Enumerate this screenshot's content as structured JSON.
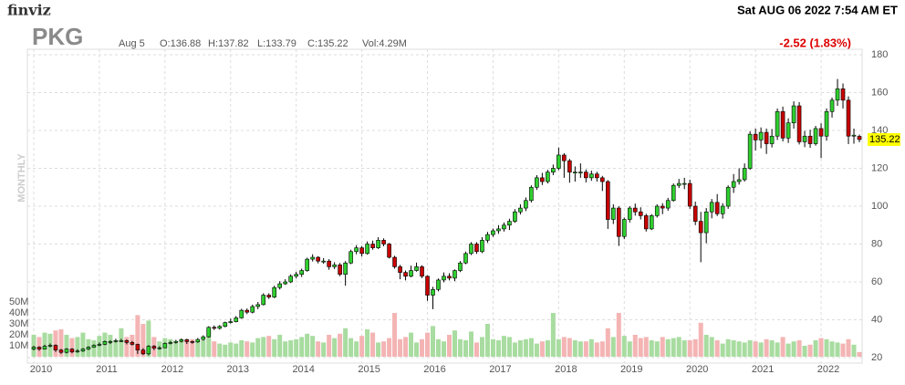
{
  "header": {
    "logo": "finviz",
    "datetime": "Sat AUG 06 2022 7:54 AM ET",
    "ticker": "PKG",
    "date": "Aug 5",
    "open": "O:136.88",
    "high": "H:137.82",
    "low": "L:133.79",
    "close": "C:135.22",
    "volume": "Vol:4.29M",
    "change": "-2.52 (1.83%)",
    "period": "MONTHLY"
  },
  "chart_data": {
    "type": "candlestick",
    "categories": [
      "2010",
      null,
      null,
      null,
      null,
      null,
      null,
      null,
      null,
      null,
      null,
      null,
      "2011",
      null,
      null,
      null,
      null,
      null,
      null,
      null,
      null,
      null,
      null,
      null,
      "2012",
      null,
      null,
      null,
      null,
      null,
      null,
      null,
      null,
      null,
      null,
      null,
      "2013",
      null,
      null,
      null,
      null,
      null,
      null,
      null,
      null,
      null,
      null,
      null,
      "2014",
      null,
      null,
      null,
      null,
      null,
      null,
      null,
      null,
      null,
      null,
      null,
      "2015",
      null,
      null,
      null,
      null,
      null,
      null,
      null,
      null,
      null,
      null,
      null,
      "2016",
      null,
      null,
      null,
      null,
      null,
      null,
      null,
      null,
      null,
      null,
      null,
      "2017",
      null,
      null,
      null,
      null,
      null,
      null,
      null,
      null,
      null,
      null,
      null,
      "2018",
      null,
      null,
      null,
      null,
      null,
      null,
      null,
      null,
      null,
      null,
      null,
      "2019",
      null,
      null,
      null,
      null,
      null,
      null,
      null,
      null,
      null,
      null,
      null,
      "2020",
      null,
      null,
      null,
      null,
      null,
      null,
      null,
      null,
      null,
      null,
      null,
      "2021",
      null,
      null,
      null,
      null,
      null,
      null,
      null,
      null,
      null,
      null,
      null,
      "2022",
      null,
      null,
      null,
      null,
      null,
      null,
      null
    ],
    "open": [
      24.5,
      25.5,
      24.5,
      26,
      26.5,
      24,
      22.8,
      24.5,
      23,
      23.5,
      24.5,
      25.5,
      26.5,
      27,
      28.5,
      28.5,
      29,
      29,
      28,
      27,
      24,
      22,
      26,
      25,
      25.2,
      27.5,
      28,
      28.6,
      29.5,
      28.5,
      28.3,
      29.6,
      31,
      36,
      35.5,
      36.5,
      38.5,
      39,
      41,
      45,
      44,
      47,
      48,
      53,
      52,
      57,
      59,
      60,
      63,
      64,
      66,
      72,
      73,
      71,
      71,
      68,
      69,
      64,
      70,
      76,
      78,
      75,
      80,
      78,
      82,
      80,
      73,
      68,
      65,
      63,
      66,
      68,
      63,
      53,
      56,
      61,
      63,
      62,
      66,
      70,
      75,
      80,
      76,
      82,
      85,
      87,
      88,
      90,
      92,
      97,
      99,
      103,
      110,
      115,
      113,
      118,
      120,
      127,
      124,
      118,
      118,
      118,
      115,
      117,
      115,
      113,
      93,
      99,
      84,
      93,
      99,
      97,
      95,
      88,
      95,
      100,
      99,
      103,
      111,
      112,
      112,
      100,
      92,
      86,
      97,
      102,
      96,
      100,
      110,
      113,
      114,
      120,
      138,
      135,
      139,
      133,
      137,
      150,
      136,
      144,
      153,
      134,
      137,
      133,
      141,
      137,
      150,
      156,
      162,
      156,
      137,
      136.88
    ],
    "high": [
      26.2,
      26,
      26.8,
      27.5,
      27,
      24.6,
      25,
      25,
      24.4,
      25,
      26,
      27,
      28,
      29,
      29.2,
      30,
      30,
      29.6,
      28.8,
      27.4,
      25,
      26.6,
      26.6,
      26,
      28,
      28.8,
      29.4,
      30.2,
      30,
      29,
      30.4,
      31.8,
      36.6,
      37,
      37.2,
      39,
      40.6,
      42,
      45.8,
      46,
      48,
      49.4,
      54,
      54,
      58,
      60.4,
      61.4,
      64,
      65.4,
      67,
      72.8,
      74.6,
      73.6,
      72.6,
      72,
      70.4,
      70,
      71,
      77,
      79.4,
      79,
      81.4,
      81.8,
      83.6,
      83,
      80.6,
      73.8,
      69,
      66,
      68.6,
      70.2,
      68.8,
      63.4,
      57.4,
      61.8,
      65,
      64.6,
      66.6,
      71,
      76,
      81,
      81,
      83.6,
      86.4,
      88.2,
      90,
      91.4,
      93.4,
      98.4,
      101,
      104.6,
      111,
      116.4,
      117.6,
      119.2,
      122,
      131,
      128,
      125,
      121,
      122.6,
      119.4,
      118.8,
      118.2,
      116,
      113.8,
      101,
      100,
      94,
      100,
      101.4,
      99.4,
      96,
      95.8,
      101,
      101.6,
      104.4,
      112,
      114.4,
      115,
      114,
      102.4,
      97,
      99,
      103.8,
      106.4,
      101.6,
      111,
      117,
      120,
      122.6,
      139.6,
      141,
      141.6,
      141,
      140.8,
      151.6,
      152.6,
      146.4,
      155.4,
      155,
      139.8,
      140.4,
      142.4,
      143.8,
      151.6,
      157.4,
      167.2,
      164.8,
      158,
      141,
      137.82
    ],
    "low": [
      23.8,
      23.6,
      24.2,
      25.4,
      23,
      22,
      22.2,
      22.3,
      22.6,
      23,
      24,
      25.2,
      26,
      26.6,
      27.2,
      28,
      28.2,
      27,
      26.4,
      22,
      21.4,
      21.2,
      24,
      24.2,
      25,
      27,
      27.4,
      28,
      27.2,
      27.4,
      27.8,
      29,
      30.6,
      34.6,
      34.8,
      36,
      38,
      38.6,
      40.6,
      43,
      43.4,
      45.6,
      47.6,
      51,
      51.4,
      56,
      58.4,
      59.4,
      61.8,
      62.6,
      65.4,
      70.8,
      69.8,
      69.6,
      66.4,
      66.8,
      63,
      58,
      69.4,
      74.6,
      73.4,
      74.4,
      77,
      77.4,
      78.8,
      72.4,
      67,
      61.4,
      60.8,
      62.4,
      65.4,
      62,
      50,
      45.6,
      55,
      59.8,
      60.8,
      60.4,
      65.2,
      69.4,
      74.2,
      74.8,
      75.2,
      80.6,
      83.8,
      85.4,
      86.6,
      87.4,
      91.2,
      95.6,
      97.4,
      102,
      108.6,
      111.2,
      112,
      116.4,
      119,
      115,
      112.4,
      113,
      115,
      112.6,
      113.4,
      113,
      108,
      88,
      90.6,
      79,
      82.6,
      91.4,
      95,
      93,
      86.6,
      87.4,
      94,
      95.8,
      97.6,
      102.4,
      109.6,
      109,
      98.6,
      90,
      70.4,
      80.4,
      93.6,
      94.8,
      93.4,
      98.6,
      107,
      111.4,
      113,
      119.2,
      129.4,
      130.6,
      127.6,
      131,
      135,
      134.2,
      133.4,
      141,
      132.6,
      131.2,
      130.8,
      132,
      125.4,
      134.6,
      146.8,
      153,
      151.6,
      132.8,
      133,
      133.79
    ],
    "close": [
      25.5,
      24.5,
      26,
      26.5,
      24,
      22.8,
      24.5,
      23,
      23.5,
      24.5,
      25.5,
      26.5,
      27,
      28.5,
      28.5,
      29,
      29,
      28,
      27,
      24,
      22,
      26,
      25,
      25.2,
      27.5,
      28,
      28.6,
      29.5,
      28.5,
      28.3,
      29.6,
      31,
      36,
      35.5,
      36.5,
      38.5,
      39,
      41,
      45,
      44,
      47,
      48,
      53,
      52,
      57,
      59,
      60,
      63,
      64,
      66,
      72,
      73,
      71,
      71,
      68,
      69,
      64,
      70,
      76,
      78,
      75,
      80,
      78,
      82,
      80,
      73,
      68,
      65,
      63,
      66,
      68,
      63,
      53,
      56,
      61,
      63,
      62,
      66,
      70,
      75,
      80,
      76,
      82,
      85,
      87,
      88,
      90,
      92,
      97,
      99,
      103,
      110,
      115,
      113,
      118,
      120,
      127,
      124,
      118,
      118,
      118,
      115,
      117,
      115,
      113,
      93,
      99,
      84,
      93,
      99,
      97,
      95,
      88,
      95,
      100,
      99,
      103,
      111,
      112,
      112,
      100,
      92,
      86,
      97,
      102,
      96,
      100,
      110,
      113,
      114,
      120,
      138,
      135,
      139,
      133,
      137,
      150,
      136,
      144,
      153,
      134,
      137,
      133,
      141,
      137,
      150,
      156,
      162,
      156,
      137,
      137.5,
      135.22
    ],
    "volume": [
      20,
      18,
      22,
      21,
      24,
      25,
      20,
      17,
      18,
      22,
      16,
      15,
      19,
      22,
      20,
      15,
      26,
      18,
      20,
      38,
      30,
      33,
      18,
      14,
      17,
      16,
      13,
      14,
      15,
      16,
      14,
      15,
      25,
      14,
      12,
      11,
      13,
      12,
      15,
      14,
      13,
      17,
      18,
      19,
      16,
      20,
      14,
      15,
      16,
      18,
      21,
      19,
      14,
      13,
      20,
      17,
      21,
      26,
      17,
      14,
      19,
      25,
      22,
      13,
      14,
      17,
      40,
      16,
      18,
      22,
      13,
      16,
      22,
      28,
      16,
      14,
      20,
      24,
      16,
      15,
      23,
      13,
      18,
      30,
      16,
      15,
      19,
      18,
      13,
      15,
      16,
      17,
      12,
      14,
      15,
      40,
      16,
      18,
      17,
      15,
      14,
      14,
      16,
      13,
      14,
      26,
      18,
      40,
      19,
      14,
      20,
      17,
      18,
      15,
      14,
      18,
      16,
      17,
      18,
      15,
      15,
      16,
      31,
      20,
      18,
      15,
      12,
      16,
      15,
      14,
      13,
      15,
      14,
      13,
      16,
      15,
      13,
      18,
      12,
      14,
      15,
      10,
      11,
      15,
      17,
      16,
      14,
      13,
      12,
      16,
      11,
      4.29
    ],
    "ylim": [
      20,
      180
    ],
    "yticks": [
      20,
      40,
      60,
      80,
      100,
      120,
      140,
      160,
      180
    ],
    "y2lim": [
      0,
      50
    ],
    "y2ticks": [
      {
        "value": 10,
        "label": "10M"
      },
      {
        "value": 20,
        "label": "20M"
      },
      {
        "value": 30,
        "label": "30M"
      },
      {
        "value": 40,
        "label": "40M"
      },
      {
        "value": 50,
        "label": "50M"
      }
    ],
    "up_color": "#2fcf2f",
    "down_color": "#c80000",
    "up_volume_color": "#a8dca0",
    "down_volume_color": "#f4b4b4",
    "grid": true
  }
}
